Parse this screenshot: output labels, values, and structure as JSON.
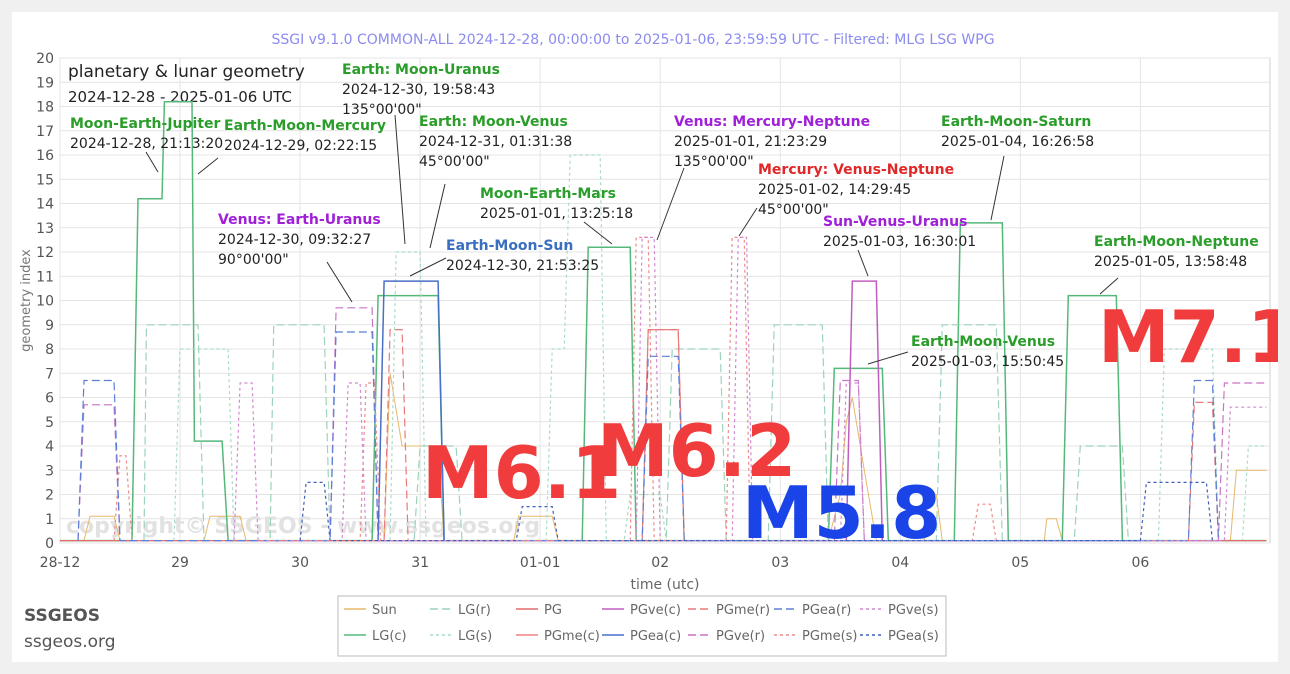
{
  "chart_data": {
    "type": "line",
    "title": "SSGI v9.1.0 COMMON-ALL 2024-12-28, 00:00:00 to 2025-01-06, 23:59:59 UTC - Filtered: MLG LSG WPG",
    "inner_title": "planetary & lunar geometry",
    "inner_subtitle": "2024-12-28 - 2025-01-06 UTC",
    "xlabel": "time (utc)",
    "ylabel": "geometry index",
    "x_unit": "days since 2024-12-28 00:00 UTC",
    "xlim": [
      0,
      10.08
    ],
    "ylim": [
      0,
      20
    ],
    "grid": true,
    "x_ticks": [
      {
        "x": 0,
        "label": "28-12"
      },
      {
        "x": 1,
        "label": "29"
      },
      {
        "x": 2,
        "label": "30"
      },
      {
        "x": 3,
        "label": "31"
      },
      {
        "x": 4,
        "label": "01-01"
      },
      {
        "x": 5,
        "label": "02"
      },
      {
        "x": 6,
        "label": "03"
      },
      {
        "x": 7,
        "label": "04"
      },
      {
        "x": 8,
        "label": "05"
      },
      {
        "x": 9,
        "label": "06"
      }
    ],
    "y_ticks": [
      "0",
      "1",
      "2",
      "3",
      "4",
      "5",
      "6",
      "7",
      "8",
      "9",
      "10",
      "11",
      "12",
      "13",
      "14",
      "15",
      "16",
      "17",
      "18",
      "19",
      "20"
    ],
    "watermark": "copyright© SSGEOS - www.ssgeos.org",
    "legend_position": "bottom",
    "series": [
      {
        "name": "Sun",
        "color": "#e8b86a",
        "dash": "solid",
        "width": 1,
        "points": [
          [
            0,
            0.1
          ],
          [
            0.2,
            0.1
          ],
          [
            0.25,
            1.1
          ],
          [
            0.45,
            1.1
          ],
          [
            0.5,
            0.1
          ],
          [
            1.2,
            0.1
          ],
          [
            1.25,
            1.1
          ],
          [
            1.5,
            1.1
          ],
          [
            1.55,
            0.1
          ],
          [
            2.7,
            0.1
          ],
          [
            2.75,
            7
          ],
          [
            2.85,
            4
          ],
          [
            3.15,
            4
          ],
          [
            3.2,
            0.1
          ],
          [
            3.78,
            0.1
          ],
          [
            3.82,
            1.1
          ],
          [
            4.1,
            1.1
          ],
          [
            4.15,
            0.1
          ],
          [
            6.4,
            0.1
          ],
          [
            6.5,
            2
          ],
          [
            6.55,
            5
          ],
          [
            6.6,
            6
          ],
          [
            6.7,
            3
          ],
          [
            6.8,
            0.1
          ],
          [
            7.2,
            0.1
          ],
          [
            7.22,
            2
          ],
          [
            7.3,
            2
          ],
          [
            7.35,
            0.1
          ],
          [
            8.2,
            0.1
          ],
          [
            8.22,
            1
          ],
          [
            8.3,
            1
          ],
          [
            8.35,
            0.1
          ],
          [
            9.75,
            0.1
          ],
          [
            9.8,
            3
          ],
          [
            10.05,
            3
          ]
        ]
      },
      {
        "name": "LG(c)",
        "color": "#55b87a",
        "dash": "solid",
        "width": 1.5,
        "points": [
          [
            0,
            0.1
          ],
          [
            0.6,
            0.1
          ],
          [
            0.65,
            14.2
          ],
          [
            0.85,
            14.2
          ],
          [
            0.87,
            18.2
          ],
          [
            1.1,
            18.2
          ],
          [
            1.12,
            4.2
          ],
          [
            1.35,
            4.2
          ],
          [
            1.4,
            0.1
          ],
          [
            2.6,
            0.1
          ],
          [
            2.65,
            10.2
          ],
          [
            3.15,
            10.2
          ],
          [
            3.2,
            0.1
          ],
          [
            4.35,
            0.1
          ],
          [
            4.4,
            12.2
          ],
          [
            4.75,
            12.2
          ],
          [
            4.8,
            0.1
          ],
          [
            6.4,
            0.1
          ],
          [
            6.45,
            7.2
          ],
          [
            6.85,
            7.2
          ],
          [
            6.9,
            0.1
          ],
          [
            7.45,
            0.1
          ],
          [
            7.5,
            13.2
          ],
          [
            7.85,
            13.2
          ],
          [
            7.9,
            0.1
          ],
          [
            8.35,
            0.1
          ],
          [
            8.4,
            10.2
          ],
          [
            8.8,
            10.2
          ],
          [
            8.85,
            0.1
          ],
          [
            10.05,
            0.1
          ]
        ]
      },
      {
        "name": "LG(r)",
        "color": "#9cd3ba",
        "dash": "8,4",
        "width": 1.2,
        "points": [
          [
            0.7,
            0.1
          ],
          [
            0.72,
            9
          ],
          [
            1.15,
            9
          ],
          [
            1.2,
            0.1
          ],
          [
            1.75,
            0.1
          ],
          [
            1.78,
            9
          ],
          [
            2.2,
            9
          ],
          [
            2.25,
            0.1
          ],
          [
            2.95,
            0.1
          ],
          [
            3.0,
            4
          ],
          [
            3.3,
            4
          ],
          [
            3.35,
            0.1
          ],
          [
            5.05,
            0.1
          ],
          [
            5.1,
            8
          ],
          [
            5.5,
            8
          ],
          [
            5.55,
            0.1
          ],
          [
            5.9,
            0.1
          ],
          [
            5.95,
            9
          ],
          [
            6.35,
            9
          ],
          [
            6.4,
            0.1
          ],
          [
            7.3,
            0.1
          ],
          [
            7.35,
            9
          ],
          [
            7.8,
            9
          ],
          [
            7.85,
            0.1
          ],
          [
            8.45,
            0.1
          ],
          [
            8.5,
            4
          ],
          [
            8.85,
            4
          ],
          [
            8.9,
            0.1
          ]
        ]
      },
      {
        "name": "LG(s)",
        "color": "#a8dcc6",
        "dash": "3,3",
        "width": 1.2,
        "points": [
          [
            0.95,
            0.1
          ],
          [
            1.0,
            8
          ],
          [
            1.4,
            8
          ],
          [
            1.45,
            0.1
          ],
          [
            2.75,
            0.1
          ],
          [
            2.8,
            12
          ],
          [
            3.0,
            12
          ],
          [
            3.05,
            0.1
          ],
          [
            4.05,
            0.1
          ],
          [
            4.1,
            8
          ],
          [
            4.2,
            8
          ],
          [
            4.25,
            16
          ],
          [
            4.5,
            16
          ],
          [
            4.55,
            0.1
          ],
          [
            4.7,
            0.1
          ],
          [
            4.75,
            2
          ],
          [
            5.0,
            2
          ],
          [
            5.05,
            0.1
          ],
          [
            9.15,
            0.1
          ],
          [
            9.2,
            8
          ],
          [
            9.6,
            8
          ],
          [
            9.65,
            0.1
          ],
          [
            9.85,
            0.1
          ],
          [
            9.9,
            4
          ],
          [
            10.05,
            4
          ]
        ]
      },
      {
        "name": "PG",
        "color": "#e46a6a",
        "dash": "solid",
        "width": 1.2,
        "points": [
          [
            0,
            0.1
          ],
          [
            10.05,
            0.1
          ]
        ]
      },
      {
        "name": "PGme(c)",
        "color": "#f08080",
        "dash": "solid",
        "width": 1.2,
        "points": [
          [
            4.85,
            0.1
          ],
          [
            4.9,
            8.8
          ],
          [
            5.15,
            8.8
          ],
          [
            5.2,
            0.1
          ]
        ]
      },
      {
        "name": "PGve(c)",
        "color": "#c05ec0",
        "dash": "solid",
        "width": 1.5,
        "points": [
          [
            6.55,
            0.1
          ],
          [
            6.6,
            10.8
          ],
          [
            6.8,
            10.8
          ],
          [
            6.85,
            0.1
          ]
        ]
      },
      {
        "name": "PGea(c)",
        "color": "#4a6fc8",
        "dash": "solid",
        "width": 1.5,
        "points": [
          [
            2.65,
            0.1
          ],
          [
            2.7,
            10.8
          ],
          [
            3.15,
            10.8
          ],
          [
            3.2,
            0.1
          ]
        ]
      },
      {
        "name": "PGme(r)",
        "color": "#e87a7a",
        "dash": "8,4",
        "width": 1.2,
        "points": [
          [
            2.7,
            0.1
          ],
          [
            2.75,
            8.8
          ],
          [
            2.85,
            8.8
          ],
          [
            2.9,
            0.1
          ],
          [
            4.85,
            0.1
          ],
          [
            4.9,
            8.8
          ],
          [
            5.15,
            8.8
          ],
          [
            5.2,
            0.1
          ],
          [
            9.4,
            0.1
          ],
          [
            9.45,
            5.8
          ],
          [
            9.6,
            5.8
          ],
          [
            9.65,
            0.1
          ]
        ]
      },
      {
        "name": "PGve(r)",
        "color": "#c874c8",
        "dash": "8,4",
        "width": 1.2,
        "points": [
          [
            0.15,
            0.1
          ],
          [
            0.2,
            5.7
          ],
          [
            0.45,
            5.7
          ],
          [
            0.5,
            0.1
          ],
          [
            2.25,
            0.1
          ],
          [
            2.3,
            9.7
          ],
          [
            2.6,
            9.7
          ],
          [
            2.65,
            0.1
          ],
          [
            6.45,
            0.1
          ],
          [
            6.5,
            6.7
          ],
          [
            6.65,
            6.7
          ],
          [
            6.7,
            0.1
          ],
          [
            9.65,
            0.1
          ],
          [
            9.7,
            6.6
          ],
          [
            10.05,
            6.6
          ]
        ]
      },
      {
        "name": "PGme(s)",
        "color": "#ee8c8c",
        "dash": "3,3",
        "width": 1.2,
        "points": [
          [
            0.45,
            0.1
          ],
          [
            0.5,
            3.6
          ],
          [
            0.55,
            3.6
          ],
          [
            0.6,
            0.1
          ],
          [
            2.5,
            0.1
          ],
          [
            2.55,
            6.6
          ],
          [
            2.62,
            6.6
          ],
          [
            2.67,
            0.1
          ],
          [
            4.75,
            0.1
          ],
          [
            4.8,
            12.6
          ],
          [
            4.9,
            12.6
          ],
          [
            4.95,
            0.1
          ],
          [
            5.55,
            0.1
          ],
          [
            5.6,
            12.6
          ],
          [
            5.7,
            12.6
          ],
          [
            5.75,
            0.1
          ],
          [
            7.6,
            0.1
          ],
          [
            7.65,
            1.6
          ],
          [
            7.75,
            1.6
          ],
          [
            7.8,
            0.1
          ]
        ]
      },
      {
        "name": "PGea(r)",
        "color": "#5b7fd8",
        "dash": "8,4",
        "width": 1.2,
        "points": [
          [
            0.15,
            0.1
          ],
          [
            0.2,
            6.7
          ],
          [
            0.45,
            6.7
          ],
          [
            0.5,
            0.1
          ],
          [
            2.25,
            0.1
          ],
          [
            2.3,
            8.7
          ],
          [
            2.6,
            8.7
          ],
          [
            2.65,
            0.1
          ],
          [
            4.85,
            0.1
          ],
          [
            4.9,
            7.7
          ],
          [
            5.15,
            7.7
          ],
          [
            5.2,
            0.1
          ],
          [
            9.4,
            0.1
          ],
          [
            9.45,
            6.7
          ],
          [
            9.6,
            6.7
          ],
          [
            9.65,
            0.1
          ]
        ]
      },
      {
        "name": "PGve(s)",
        "color": "#d08ad0",
        "dash": "3,3",
        "width": 1.2,
        "points": [
          [
            1.45,
            0.1
          ],
          [
            1.5,
            6.6
          ],
          [
            1.6,
            6.6
          ],
          [
            1.65,
            0.1
          ],
          [
            2.35,
            0.1
          ],
          [
            2.4,
            6.6
          ],
          [
            2.5,
            6.6
          ],
          [
            2.55,
            0.1
          ],
          [
            4.8,
            0.1
          ],
          [
            4.85,
            12.6
          ],
          [
            4.95,
            12.6
          ],
          [
            5.0,
            0.1
          ],
          [
            5.6,
            0.1
          ],
          [
            5.65,
            12.6
          ],
          [
            5.72,
            12.6
          ],
          [
            5.77,
            0.1
          ],
          [
            6.5,
            0.1
          ],
          [
            6.55,
            6.6
          ],
          [
            6.65,
            6.6
          ],
          [
            6.7,
            0.1
          ],
          [
            9.7,
            0.1
          ],
          [
            9.75,
            5.6
          ],
          [
            10.05,
            5.6
          ]
        ]
      },
      {
        "name": "PGea(s)",
        "color": "#3f5fb8",
        "dash": "3,3",
        "width": 1.2,
        "points": [
          [
            2.0,
            0.1
          ],
          [
            2.05,
            2.5
          ],
          [
            2.2,
            2.5
          ],
          [
            2.25,
            0.1
          ],
          [
            3.8,
            0.1
          ],
          [
            3.85,
            1.5
          ],
          [
            4.1,
            1.5
          ],
          [
            4.15,
            0.1
          ],
          [
            9.0,
            0.1
          ],
          [
            9.05,
            2.5
          ],
          [
            9.55,
            2.5
          ],
          [
            9.6,
            0.1
          ]
        ]
      }
    ],
    "annotations": [
      {
        "title": "Moon-Earth-Jupiter",
        "time": "2024-12-28, 21:13:20",
        "angle": "",
        "color": "#2a9d2a"
      },
      {
        "title": "Earth-Moon-Mercury",
        "time": "2024-12-29, 02:22:15",
        "angle": "",
        "color": "#2a9d2a"
      },
      {
        "title": "Earth: Moon-Uranus",
        "time": "2024-12-30, 19:58:43",
        "angle": "135°00'00\"",
        "color": "#2a9d2a"
      },
      {
        "title": "Earth: Moon-Venus",
        "time": "2024-12-31, 01:31:38",
        "angle": "45°00'00\"",
        "color": "#2a9d2a"
      },
      {
        "title": "Venus: Earth-Uranus",
        "time": "2024-12-30, 09:32:27",
        "angle": "90°00'00\"",
        "color": "#a020d8"
      },
      {
        "title": "Earth-Moon-Sun",
        "time": "2024-12-30, 21:53:25",
        "angle": "",
        "color": "#3a6fc0"
      },
      {
        "title": "Moon-Earth-Mars",
        "time": "2025-01-01, 13:25:18",
        "angle": "",
        "color": "#2a9d2a"
      },
      {
        "title": "Venus: Mercury-Neptune",
        "time": "2025-01-01, 21:23:29",
        "angle": "135°00'00\"",
        "color": "#a020d8"
      },
      {
        "title": "Mercury: Venus-Neptune",
        "time": "2025-01-02, 14:29:45",
        "angle": "45°00'00\"",
        "color": "#e02828"
      },
      {
        "title": "Earth-Moon-Saturn",
        "time": "2025-01-04, 16:26:58",
        "angle": "",
        "color": "#2a9d2a"
      },
      {
        "title": "Sun-Venus-Uranus",
        "time": "2025-01-03, 16:30:01",
        "angle": "",
        "color": "#a020d8"
      },
      {
        "title": "Earth-Moon-Neptune",
        "time": "2025-01-05, 13:58:48",
        "angle": "",
        "color": "#2a9d2a"
      },
      {
        "title": "Earth-Moon-Venus",
        "time": "2025-01-03, 15:50:45",
        "angle": "",
        "color": "#2a9d2a"
      }
    ],
    "magnitude_labels": [
      {
        "text": "M6.1",
        "color": "#f03c3c"
      },
      {
        "text": "M6.2",
        "color": "#f03c3c"
      },
      {
        "text": "M5.8",
        "color": "#1a44e8"
      },
      {
        "text": "M7.1",
        "color": "#f03c3c"
      }
    ]
  },
  "branding": {
    "name": "SSGEOS",
    "url": "ssgeos.org"
  }
}
